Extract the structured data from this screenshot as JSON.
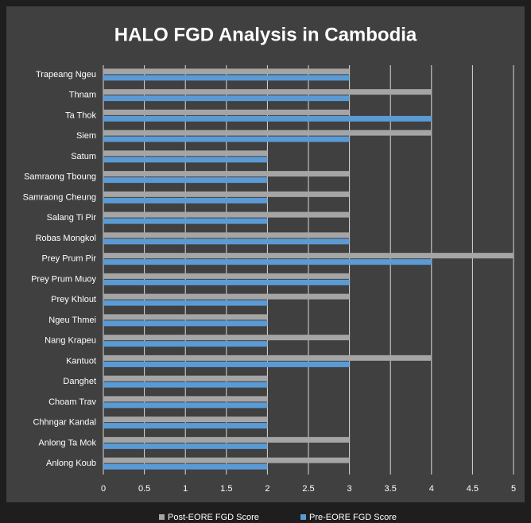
{
  "chart_data": {
    "type": "hbar",
    "title": "HALO FGD Analysis in Cambodia",
    "categories": [
      "Trapeang Ngeu",
      "Thnam",
      "Ta Thok",
      "Siem",
      "Satum",
      "Samraong Tboung",
      "Samraong Cheung",
      "Salang Ti Pir",
      "Robas Mongkol",
      "Prey Prum Pir",
      "Prey Prum Muoy",
      "Prey Khlout",
      "Ngeu Thmei",
      "Nang Krapeu",
      "Kantuot",
      "Danghet",
      "Choam Trav",
      "Chhngar Kandal",
      "Anlong Ta Mok",
      "Anlong Koub"
    ],
    "series": [
      {
        "name": "Post-EORE FGD Score",
        "color": "#a5a5a5",
        "values": [
          3,
          4,
          3,
          4,
          2,
          3,
          3,
          3,
          3,
          5,
          3,
          3,
          2,
          3,
          4,
          2,
          2,
          2,
          3,
          3
        ]
      },
      {
        "name": "Pre-EORE FGD Score",
        "color": "#5b9bd5",
        "values": [
          3,
          3,
          4,
          3,
          2,
          2,
          2,
          2,
          3,
          4,
          3,
          2,
          2,
          2,
          3,
          2,
          2,
          2,
          2,
          2
        ]
      }
    ],
    "xlim": [
      0,
      5
    ],
    "xticks": [
      0,
      0.5,
      1,
      1.5,
      2,
      2.5,
      3,
      3.5,
      4,
      4.5,
      5
    ],
    "grid": true,
    "legend": "bottom"
  }
}
